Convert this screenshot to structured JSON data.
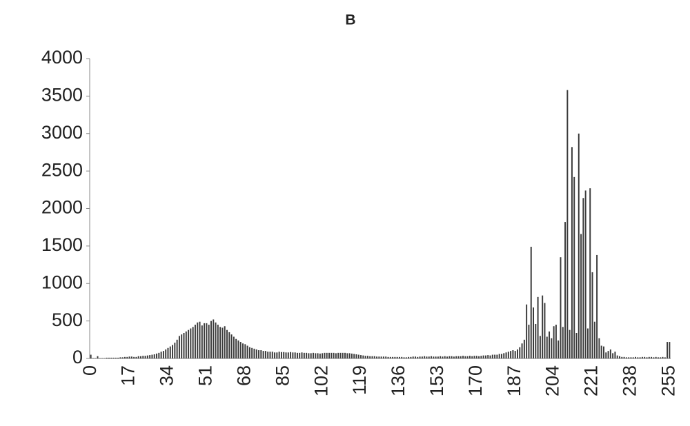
{
  "chart_data": {
    "type": "bar",
    "title": "B",
    "categories": [
      "0",
      null,
      null,
      null,
      null,
      null,
      null,
      null,
      null,
      null,
      null,
      null,
      null,
      null,
      null,
      null,
      null,
      "17",
      null,
      null,
      null,
      null,
      null,
      null,
      null,
      null,
      null,
      null,
      null,
      null,
      null,
      null,
      null,
      null,
      "34",
      null,
      null,
      null,
      null,
      null,
      null,
      null,
      null,
      null,
      null,
      null,
      null,
      null,
      null,
      null,
      null,
      "51",
      null,
      null,
      null,
      null,
      null,
      null,
      null,
      null,
      null,
      null,
      null,
      null,
      null,
      null,
      null,
      null,
      "68",
      null,
      null,
      null,
      null,
      null,
      null,
      null,
      null,
      null,
      null,
      null,
      null,
      null,
      null,
      null,
      null,
      "85",
      null,
      null,
      null,
      null,
      null,
      null,
      null,
      null,
      null,
      null,
      null,
      null,
      null,
      null,
      null,
      null,
      "102",
      null,
      null,
      null,
      null,
      null,
      null,
      null,
      null,
      null,
      null,
      null,
      null,
      null,
      null,
      null,
      null,
      "119",
      null,
      null,
      null,
      null,
      null,
      null,
      null,
      null,
      null,
      null,
      null,
      null,
      null,
      null,
      null,
      null,
      "136",
      null,
      null,
      null,
      null,
      null,
      null,
      null,
      null,
      null,
      null,
      null,
      null,
      null,
      null,
      null,
      null,
      "153",
      null,
      null,
      null,
      null,
      null,
      null,
      null,
      null,
      null,
      null,
      null,
      null,
      null,
      null,
      null,
      null,
      "170",
      null,
      null,
      null,
      null,
      null,
      null,
      null,
      null,
      null,
      null,
      null,
      null,
      null,
      null,
      null,
      null,
      "187",
      null,
      null,
      null,
      null,
      null,
      null,
      null,
      null,
      null,
      null,
      null,
      null,
      null,
      null,
      null,
      null,
      "204",
      null,
      null,
      null,
      null,
      null,
      null,
      null,
      null,
      null,
      null,
      null,
      null,
      null,
      null,
      null,
      null,
      "221",
      null,
      null,
      null,
      null,
      null,
      null,
      null,
      null,
      null,
      null,
      null,
      null,
      null,
      null,
      null,
      null,
      "238",
      null,
      null,
      null,
      null,
      null,
      null,
      null,
      null,
      null,
      null,
      null,
      null,
      null,
      null,
      null,
      null,
      "255"
    ],
    "values": [
      50,
      5,
      5,
      30,
      5,
      5,
      5,
      10,
      10,
      10,
      10,
      10,
      10,
      15,
      15,
      20,
      20,
      25,
      25,
      20,
      20,
      30,
      30,
      35,
      35,
      40,
      45,
      50,
      55,
      65,
      75,
      90,
      100,
      120,
      140,
      160,
      180,
      210,
      250,
      300,
      320,
      340,
      360,
      380,
      400,
      420,
      450,
      480,
      490,
      440,
      470,
      470,
      450,
      500,
      520,
      480,
      450,
      420,
      410,
      430,
      380,
      350,
      320,
      290,
      260,
      240,
      220,
      200,
      190,
      170,
      150,
      140,
      130,
      120,
      110,
      110,
      100,
      100,
      90,
      90,
      90,
      80,
      80,
      90,
      85,
      85,
      80,
      80,
      85,
      80,
      80,
      75,
      75,
      80,
      75,
      75,
      70,
      70,
      75,
      70,
      70,
      65,
      70,
      75,
      75,
      75,
      75,
      75,
      70,
      75,
      75,
      75,
      75,
      70,
      70,
      65,
      60,
      55,
      50,
      45,
      40,
      35,
      35,
      30,
      30,
      30,
      25,
      25,
      25,
      25,
      25,
      20,
      20,
      20,
      20,
      20,
      20,
      20,
      15,
      15,
      20,
      20,
      25,
      25,
      20,
      25,
      25,
      30,
      25,
      25,
      30,
      25,
      25,
      25,
      30,
      25,
      30,
      25,
      30,
      30,
      25,
      30,
      30,
      30,
      35,
      30,
      30,
      35,
      30,
      35,
      35,
      30,
      35,
      40,
      40,
      45,
      40,
      50,
      50,
      50,
      60,
      60,
      70,
      80,
      90,
      100,
      110,
      100,
      120,
      150,
      200,
      250,
      720,
      450,
      1490,
      680,
      460,
      820,
      300,
      840,
      740,
      290,
      360,
      270,
      430,
      450,
      240,
      1350,
      420,
      1820,
      3580,
      380,
      2820,
      2420,
      340,
      3000,
      1660,
      2140,
      2240,
      400,
      2270,
      1150,
      490,
      1380,
      270,
      170,
      160,
      80,
      100,
      120,
      70,
      90,
      40,
      30,
      20,
      20,
      15,
      15,
      15,
      15,
      20,
      15,
      15,
      20,
      20,
      15,
      20,
      20,
      15,
      20,
      15,
      15,
      20,
      15,
      220,
      220
    ],
    "color": "#3a3a3a",
    "ylim": [
      0,
      4000
    ],
    "yticks": [
      0,
      500,
      1000,
      1500,
      2000,
      2500,
      3000,
      3500,
      4000
    ],
    "grid": false
  }
}
